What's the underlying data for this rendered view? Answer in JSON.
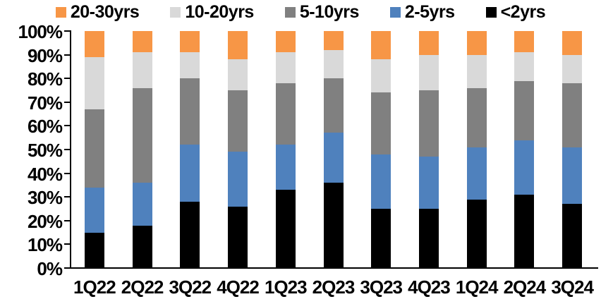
{
  "chart_data": {
    "type": "bar",
    "stacked": true,
    "title": "",
    "xlabel": "",
    "ylabel": "",
    "ylim": [
      0,
      100
    ],
    "grid": false,
    "legend_position": "top",
    "y_tick_labels": [
      "100%",
      "90%",
      "80%",
      "70%",
      "60%",
      "50%",
      "40%",
      "30%",
      "20%",
      "10%",
      "0%"
    ],
    "categories": [
      "1Q22",
      "2Q22",
      "3Q22",
      "4Q22",
      "1Q23",
      "2Q23",
      "3Q23",
      "4Q23",
      "1Q24",
      "2Q24",
      "3Q24"
    ],
    "series": [
      {
        "name": "<2yrs",
        "color": "#000000",
        "values": [
          15,
          18,
          28,
          26,
          33,
          36,
          25,
          25,
          29,
          31,
          27
        ]
      },
      {
        "name": "2-5yrs",
        "color": "#4F81BD",
        "values": [
          19,
          18,
          24,
          23,
          19,
          21,
          23,
          22,
          22,
          23,
          24
        ]
      },
      {
        "name": "5-10yrs",
        "color": "#808080",
        "values": [
          33,
          40,
          28,
          26,
          26,
          23,
          26,
          28,
          25,
          25,
          27
        ]
      },
      {
        "name": "10-20yrs",
        "color": "#D9D9D9",
        "values": [
          22,
          15,
          11,
          13,
          13,
          12,
          14,
          15,
          14,
          12,
          12
        ]
      },
      {
        "name": "20-30yrs",
        "color": "#F79646",
        "values": [
          11,
          9,
          9,
          12,
          9,
          8,
          12,
          10,
          10,
          9,
          10
        ]
      }
    ],
    "legend_order": [
      "20-30yrs",
      "10-20yrs",
      "5-10yrs",
      "2-5yrs",
      "<2yrs"
    ],
    "colors": {
      "orange": "#F79646",
      "light_gray": "#D9D9D9",
      "dark_gray": "#808080",
      "blue": "#4F81BD",
      "black": "#000000",
      "axis": "#000000",
      "background": "#FFFFFF"
    }
  }
}
